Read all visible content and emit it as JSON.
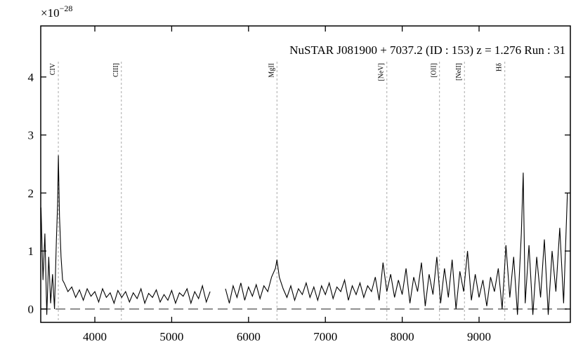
{
  "chart_data": {
    "type": "line",
    "title": "NuSTAR J081900 + 7037.2 (ID : 153)   z = 1.276   Run : 31",
    "offset_label": {
      "base": "×10",
      "exponent": "−28"
    },
    "xlim": [
      3296,
      10188
    ],
    "ylim": [
      -0.23,
      4.88
    ],
    "xticks": [
      4000,
      5000,
      6000,
      7000,
      8000,
      9000
    ],
    "yticks": [
      0,
      1,
      2,
      3,
      4
    ],
    "lines": [
      {
        "label": "CIV",
        "x": 3525
      },
      {
        "label": "CIII]",
        "x": 4345
      },
      {
        "label": "MgII",
        "x": 6370
      },
      {
        "label": "[NeV]",
        "x": 7800
      },
      {
        "label": "[OII]",
        "x": 8485
      },
      {
        "label": "[NeII]",
        "x": 8810
      },
      {
        "label": "Hδ",
        "x": 9335
      }
    ],
    "series": [
      {
        "color": "#000000",
        "x": [
          3300,
          3325,
          3350,
          3375,
          3400,
          3425,
          3450,
          3475,
          3500,
          3515,
          3525,
          3540,
          3560,
          3580,
          3600,
          3650,
          3700,
          3750,
          3800,
          3850,
          3900,
          3950,
          4000,
          4050,
          4100,
          4150,
          4200,
          4250,
          4300,
          4350,
          4400,
          4450,
          4500,
          4550,
          4600,
          4650,
          4700,
          4750,
          4800,
          4850,
          4900,
          4950,
          5000,
          5050,
          5100,
          5150,
          5200,
          5250,
          5300,
          5350,
          5400,
          5450,
          5500,
          5600,
          5700,
          5750,
          5800,
          5850,
          5900,
          5950,
          6000,
          6050,
          6100,
          6150,
          6200,
          6250,
          6300,
          6350,
          6370,
          6400,
          6450,
          6500,
          6550,
          6600,
          6650,
          6700,
          6750,
          6800,
          6850,
          6900,
          6950,
          7000,
          7050,
          7100,
          7150,
          7200,
          7250,
          7300,
          7350,
          7400,
          7450,
          7500,
          7550,
          7600,
          7650,
          7700,
          7750,
          7800,
          7850,
          7900,
          7950,
          8000,
          8050,
          8100,
          8150,
          8200,
          8250,
          8300,
          8350,
          8400,
          8450,
          8500,
          8550,
          8600,
          8650,
          8700,
          8750,
          8800,
          8850,
          8900,
          8950,
          9000,
          9050,
          9100,
          9150,
          9200,
          9250,
          9300,
          9350,
          9400,
          9450,
          9500,
          9550,
          9575,
          9600,
          9650,
          9700,
          9750,
          9800,
          9850,
          9900,
          9950,
          10000,
          10050,
          10100,
          10150
        ],
        "values": [
          1.75,
          0.5,
          1.3,
          -0.1,
          0.9,
          0.1,
          0.6,
          0.0,
          1.2,
          1.8,
          2.65,
          1.6,
          0.9,
          0.5,
          0.45,
          0.3,
          0.38,
          0.2,
          0.33,
          0.15,
          0.35,
          0.22,
          0.3,
          0.12,
          0.35,
          0.2,
          0.28,
          0.1,
          0.32,
          0.2,
          0.3,
          0.12,
          0.28,
          0.18,
          0.35,
          0.1,
          0.27,
          0.2,
          0.33,
          0.12,
          0.25,
          0.15,
          0.32,
          0.1,
          0.28,
          0.22,
          0.35,
          0.1,
          0.3,
          0.18,
          0.4,
          0.12,
          0.3,
          null,
          0.35,
          0.1,
          0.4,
          0.2,
          0.45,
          0.15,
          0.38,
          0.22,
          0.42,
          0.18,
          0.4,
          0.3,
          0.55,
          0.7,
          0.85,
          0.55,
          0.35,
          0.2,
          0.4,
          0.15,
          0.35,
          0.25,
          0.45,
          0.2,
          0.38,
          0.15,
          0.4,
          0.25,
          0.45,
          0.18,
          0.38,
          0.3,
          0.5,
          0.15,
          0.4,
          0.25,
          0.45,
          0.2,
          0.4,
          0.3,
          0.55,
          0.15,
          0.8,
          0.3,
          0.6,
          0.2,
          0.5,
          0.25,
          0.7,
          0.1,
          0.55,
          0.3,
          0.8,
          0.05,
          0.6,
          0.25,
          0.9,
          0.1,
          0.7,
          0.2,
          0.85,
          0.0,
          0.65,
          0.3,
          1.0,
          0.15,
          0.6,
          0.2,
          0.5,
          0.05,
          0.55,
          0.3,
          0.7,
          0.0,
          1.1,
          0.2,
          0.9,
          -0.1,
          1.3,
          2.35,
          0.1,
          1.1,
          -0.1,
          0.9,
          0.2,
          1.2,
          -0.1,
          1.0,
          0.3,
          1.4,
          0.1,
          2.0
        ]
      }
    ]
  }
}
